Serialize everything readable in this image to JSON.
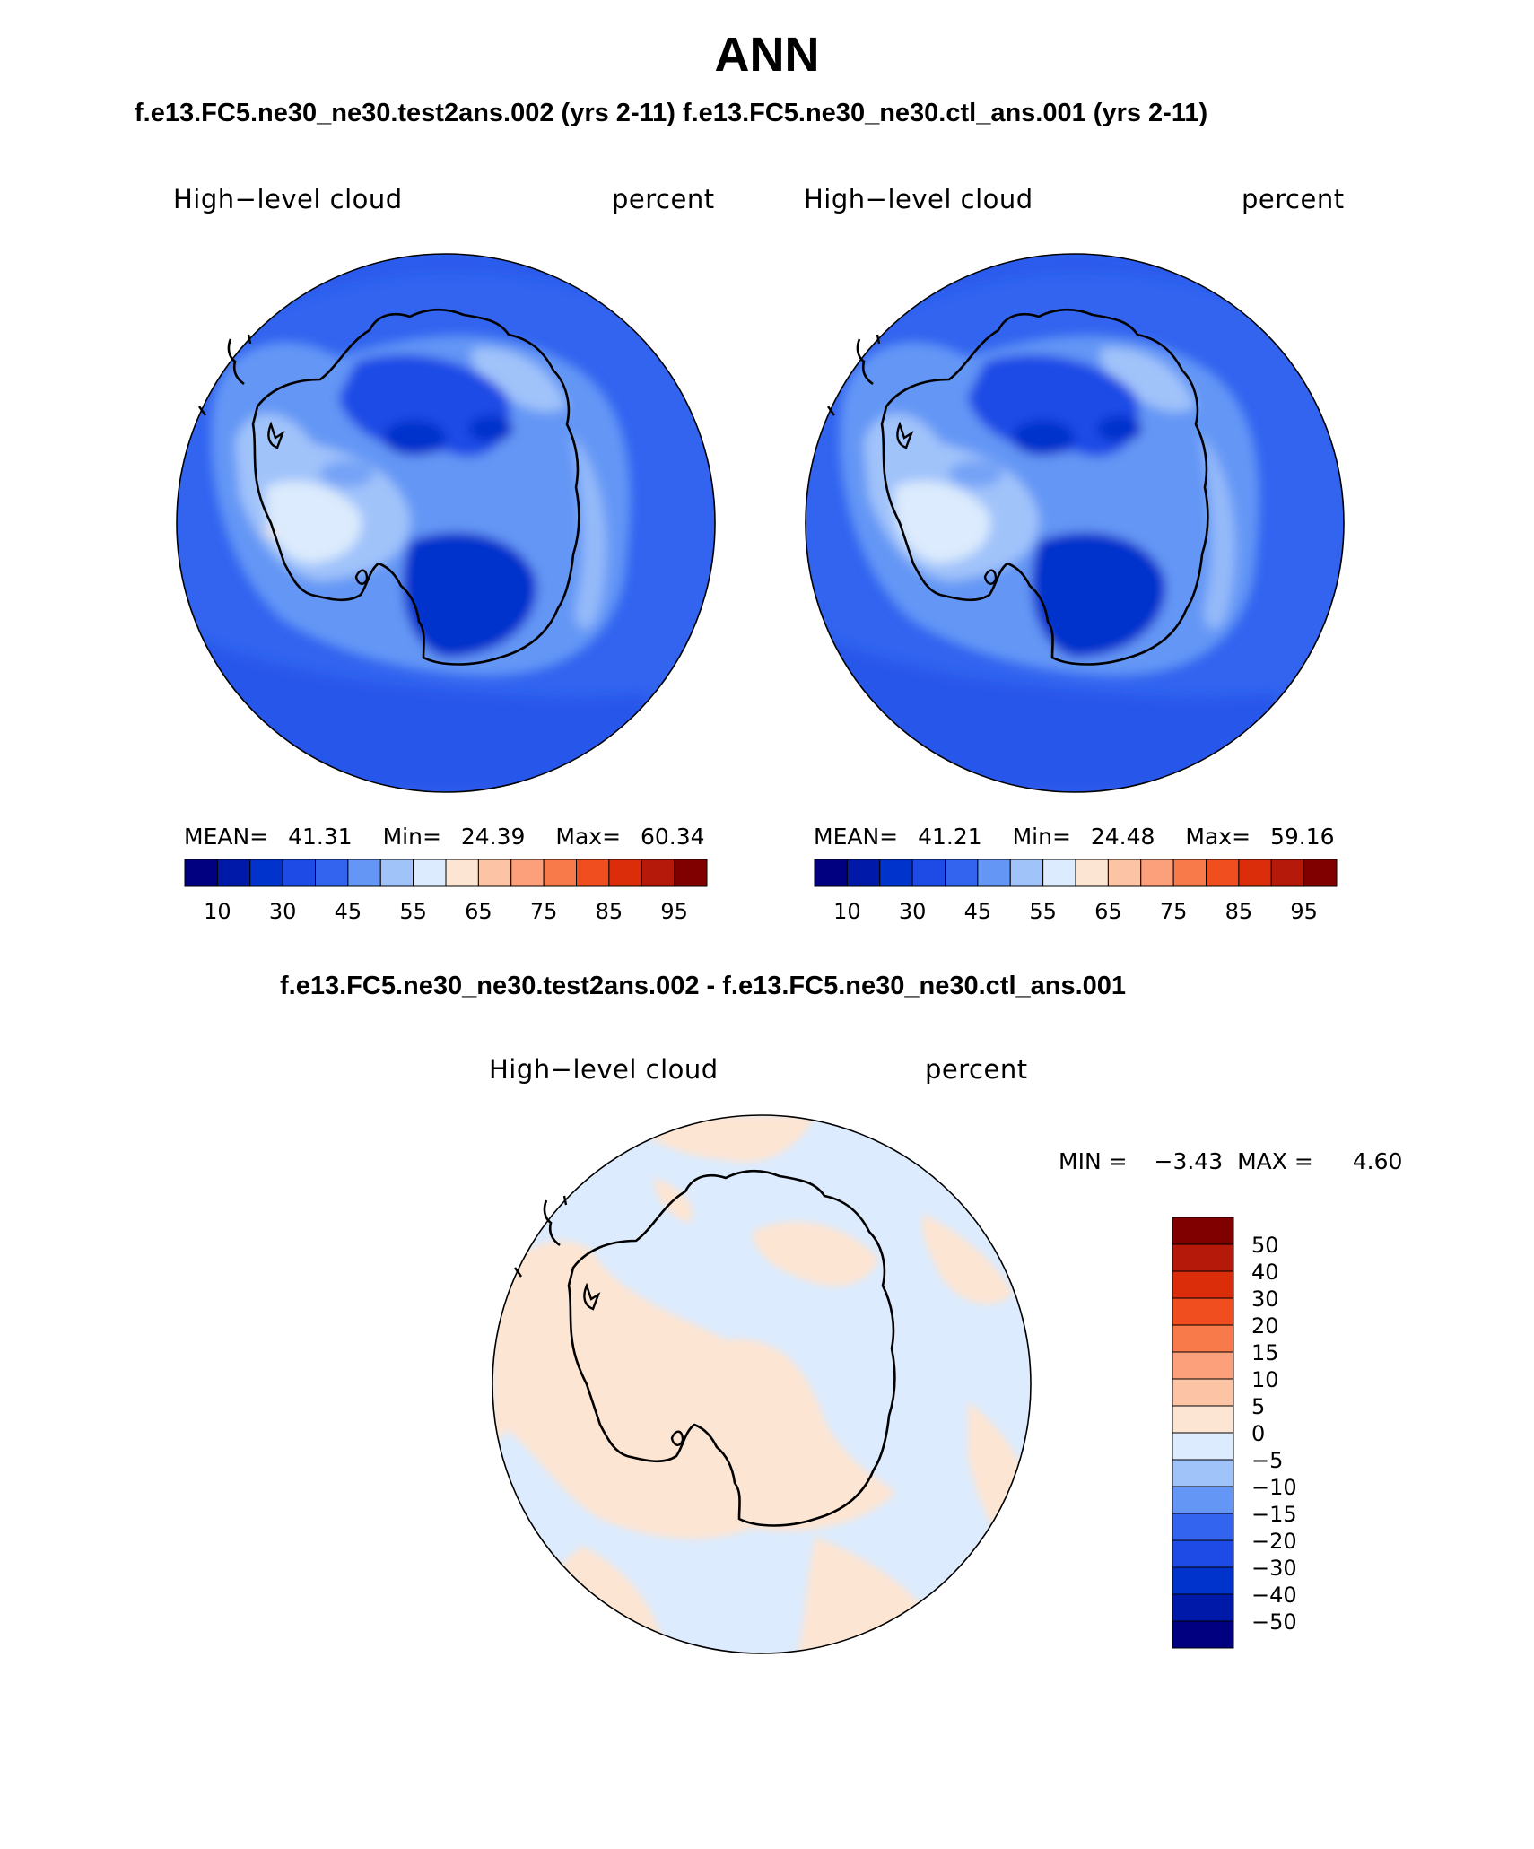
{
  "figure": {
    "season_title": "ANN",
    "panels_header": "f.e13.FC5.ne30_ne30.test2ans.002 (yrs 2-11)   f.e13.FC5.ne30_ne30.ctl_ans.001 (yrs 2-11)",
    "diff_header": "f.e13.FC5.ne30_ne30.test2ans.002 - f.e13.FC5.ne30_ne30.ctl_ans.001"
  },
  "panels": [
    {
      "variable": "High−level cloud",
      "units": "percent",
      "stats": {
        "mean_label": "MEAN=",
        "mean": "41.31",
        "min_label": "Min=",
        "min": "24.39",
        "max_label": "Max=",
        "max": "60.34"
      }
    },
    {
      "variable": "High−level cloud",
      "units": "percent",
      "stats": {
        "mean_label": "MEAN=",
        "mean": "41.21",
        "min_label": "Min=",
        "min": "24.48",
        "max_label": "Max=",
        "max": "59.16"
      }
    }
  ],
  "diff_panel": {
    "variable": "High−level cloud",
    "units": "percent",
    "stats": {
      "min_label": "MIN =",
      "min": "−3.43",
      "max_label": "MAX =",
      "max": "4.60"
    }
  },
  "colorbar": {
    "colors": [
      "#000080",
      "#0019a8",
      "#0032cc",
      "#1e4be6",
      "#3264f0",
      "#6496f5",
      "#a0c3fa",
      "#dcebfd",
      "#fde5d3",
      "#fcc4a5",
      "#fba07a",
      "#f87a4a",
      "#f04e1e",
      "#dc2d0a",
      "#b4190a",
      "#800000"
    ],
    "tick_labels": [
      "10",
      "30",
      "45",
      "55",
      "65",
      "75",
      "85",
      "95"
    ]
  },
  "diff_colorbar": {
    "colors": [
      "#000080",
      "#0019a8",
      "#0032cc",
      "#1e4be6",
      "#3264f0",
      "#6496f5",
      "#a0c3fa",
      "#dcebfd",
      "#fde5d3",
      "#fcc4a5",
      "#fba07a",
      "#f87a4a",
      "#f04e1e",
      "#dc2d0a",
      "#b4190a",
      "#800000"
    ],
    "tick_labels": [
      "50",
      "40",
      "30",
      "20",
      "15",
      "10",
      "5",
      "0",
      "−5",
      "−10",
      "−15",
      "−20",
      "−30",
      "−40",
      "−50"
    ]
  },
  "map_colors": {
    "ocean_base": "#3264f0",
    "lighter_band": "#6496f5",
    "lightest": "#a0c3fa",
    "peak": "#dcebfd",
    "warm_peak": "#fde5d3",
    "dark": "#1e4be6",
    "darkest": "#0032cc",
    "diff_negative": "#dcebfd",
    "diff_positive": "#fde5d3",
    "coast": "#000000"
  }
}
